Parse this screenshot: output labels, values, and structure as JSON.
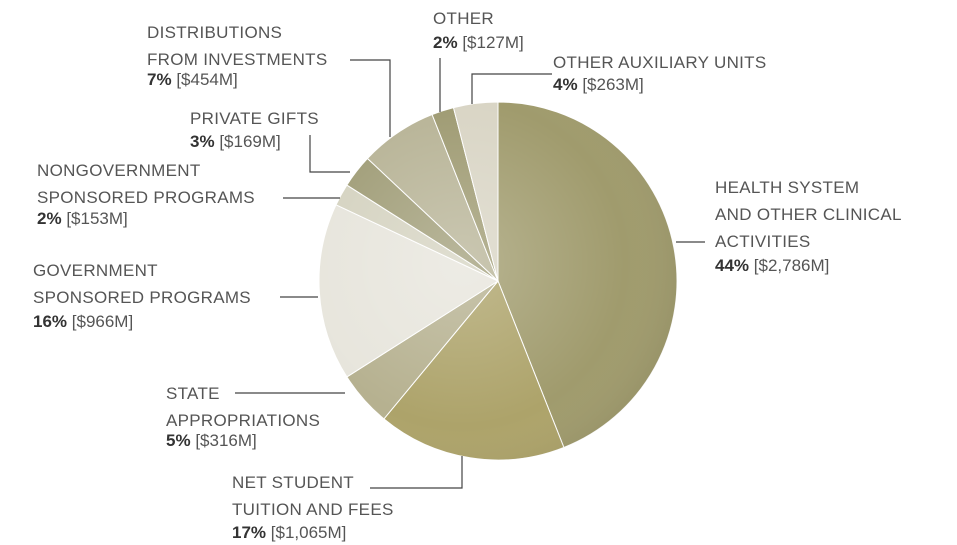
{
  "chart_data": {
    "type": "pie",
    "categories": [
      "HEALTH SYSTEM AND OTHER CLINICAL ACTIVITIES",
      "NET STUDENT TUITION AND FEES",
      "STATE APPROPRIATIONS",
      "GOVERNMENT SPONSORED PROGRAMS",
      "NONGOVERNMENT SPONSORED PROGRAMS",
      "PRIVATE GIFTS",
      "DISTRIBUTIONS FROM INVESTMENTS",
      "OTHER",
      "OTHER AUXILIARY UNITS"
    ],
    "values": [
      44,
      17,
      5,
      16,
      2,
      3,
      7,
      2,
      4
    ],
    "value_labels": [
      "44%",
      "17%",
      "5%",
      "16%",
      "2%",
      "3%",
      "7%",
      "2%",
      "4%"
    ],
    "amount_labels": [
      "[$2,786M]",
      "[$1,065M]",
      "[$316M]",
      "[$966M]",
      "[$153M]",
      "[$169M]",
      "[$454M]",
      "[$127M]",
      "[$263M]"
    ],
    "colors": [
      "#a09b6d",
      "#ada36a",
      "#b6b190",
      "#e7e5dc",
      "#d5d3c1",
      "#a19e79",
      "#b8b497",
      "#9f9b73",
      "#d9d5c5"
    ]
  }
}
